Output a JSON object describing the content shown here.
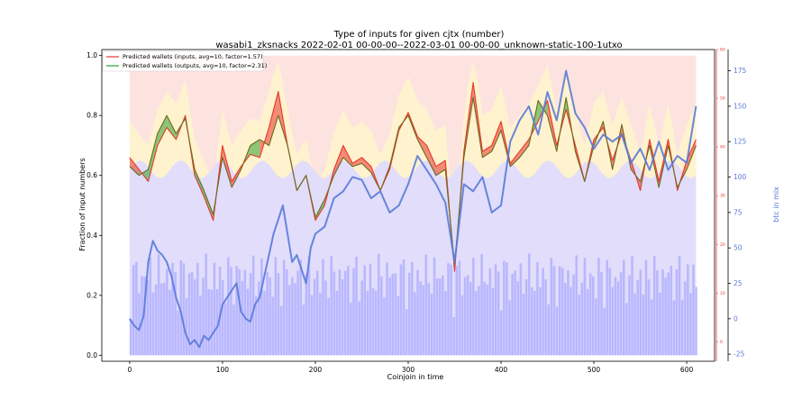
{
  "chart_data": {
    "type": "line",
    "title": "Type of inputs for given cjtx (number)",
    "subtitle": "wasabi1_zksnacks 2022-02-01 00-00-00--2022-03-01 00-00-00_unknown-static-100-1utxo",
    "xlabel": "Coinjoin in time",
    "ylabel": "Fraction of input numbers",
    "y2label": "btc in mix",
    "xlim": [
      -30,
      630
    ],
    "ylim": [
      -0.02,
      1.02
    ],
    "y2lim": [
      -30,
      190
    ],
    "y3lim": [
      -4,
      60
    ],
    "xticks": [
      0,
      100,
      200,
      300,
      400,
      500,
      600
    ],
    "yticks": [
      0.0,
      0.2,
      0.4,
      0.6,
      0.8,
      1.0
    ],
    "y2ticks": [
      -25,
      0,
      25,
      50,
      75,
      100,
      125,
      150,
      175
    ],
    "y3ticks": [
      0,
      10,
      20,
      30,
      40,
      50,
      60
    ],
    "legend_position": "top-left",
    "colors": {
      "inputs": "#e8372a",
      "outputs": "#2ca02c",
      "btc": "#5a7ad8",
      "band_bottom": "#dcdcff",
      "band_mid": "#fff3cc",
      "band_top": "#fbd9d6",
      "right_axis2": "#e53935"
    },
    "series": [
      {
        "name": "Predicted wallets (inputs, avg=10, factor=1.57)",
        "axis": "left",
        "x": [
          0,
          10,
          20,
          30,
          40,
          50,
          60,
          70,
          80,
          90,
          100,
          110,
          120,
          130,
          140,
          150,
          160,
          170,
          180,
          190,
          200,
          210,
          220,
          230,
          240,
          250,
          260,
          270,
          280,
          290,
          300,
          310,
          320,
          330,
          340,
          350,
          360,
          370,
          380,
          390,
          400,
          410,
          420,
          430,
          440,
          450,
          460,
          470,
          480,
          490,
          500,
          510,
          520,
          530,
          540,
          550,
          560,
          570,
          580,
          590,
          600,
          610
        ],
        "values": [
          0.66,
          0.62,
          0.58,
          0.7,
          0.76,
          0.72,
          0.8,
          0.6,
          0.53,
          0.45,
          0.7,
          0.58,
          0.63,
          0.67,
          0.66,
          0.76,
          0.88,
          0.7,
          0.55,
          0.6,
          0.45,
          0.5,
          0.62,
          0.7,
          0.64,
          0.66,
          0.63,
          0.55,
          0.62,
          0.75,
          0.81,
          0.73,
          0.7,
          0.63,
          0.65,
          0.28,
          0.68,
          0.91,
          0.68,
          0.7,
          0.78,
          0.64,
          0.68,
          0.72,
          0.78,
          0.85,
          0.7,
          0.82,
          0.7,
          0.58,
          0.72,
          0.76,
          0.65,
          0.74,
          0.65,
          0.55,
          0.72,
          0.58,
          0.72,
          0.55,
          0.65,
          0.72
        ]
      },
      {
        "name": "Predicted wallets (outputs, avg=10, factor=2.31)",
        "axis": "left",
        "x": [
          0,
          10,
          20,
          30,
          40,
          50,
          60,
          70,
          80,
          90,
          100,
          110,
          120,
          130,
          140,
          150,
          160,
          170,
          180,
          190,
          200,
          210,
          220,
          230,
          240,
          250,
          260,
          270,
          280,
          290,
          300,
          310,
          320,
          330,
          340,
          350,
          360,
          370,
          380,
          390,
          400,
          410,
          420,
          430,
          440,
          450,
          460,
          470,
          480,
          490,
          500,
          510,
          520,
          530,
          540,
          550,
          560,
          570,
          580,
          590,
          600,
          610
        ],
        "values": [
          0.63,
          0.6,
          0.62,
          0.74,
          0.8,
          0.74,
          0.79,
          0.62,
          0.55,
          0.47,
          0.66,
          0.56,
          0.62,
          0.7,
          0.72,
          0.7,
          0.8,
          0.7,
          0.55,
          0.6,
          0.46,
          0.52,
          0.6,
          0.66,
          0.63,
          0.64,
          0.61,
          0.55,
          0.63,
          0.76,
          0.8,
          0.72,
          0.66,
          0.6,
          0.62,
          0.3,
          0.66,
          0.86,
          0.66,
          0.68,
          0.75,
          0.63,
          0.66,
          0.7,
          0.85,
          0.8,
          0.68,
          0.86,
          0.68,
          0.58,
          0.7,
          0.78,
          0.62,
          0.77,
          0.62,
          0.58,
          0.7,
          0.56,
          0.7,
          0.56,
          0.62,
          0.7
        ]
      },
      {
        "name": "btc in mix",
        "axis": "right",
        "x": [
          0,
          5,
          10,
          15,
          20,
          25,
          30,
          35,
          40,
          45,
          50,
          55,
          60,
          65,
          70,
          75,
          80,
          85,
          90,
          95,
          100,
          105,
          110,
          115,
          120,
          125,
          130,
          135,
          140,
          145,
          150,
          155,
          160,
          165,
          170,
          175,
          180,
          185,
          190,
          195,
          200,
          210,
          220,
          230,
          240,
          250,
          260,
          270,
          280,
          290,
          300,
          310,
          320,
          330,
          340,
          350,
          360,
          370,
          380,
          390,
          400,
          410,
          420,
          430,
          440,
          450,
          460,
          470,
          480,
          490,
          500,
          510,
          520,
          530,
          540,
          550,
          560,
          570,
          580,
          590,
          600,
          610
        ],
        "values": [
          0,
          -5,
          -8,
          2,
          40,
          55,
          48,
          45,
          40,
          30,
          15,
          5,
          -10,
          -18,
          -15,
          -20,
          -12,
          -15,
          -10,
          -5,
          10,
          15,
          20,
          25,
          5,
          0,
          -2,
          10,
          15,
          30,
          45,
          60,
          70,
          80,
          60,
          40,
          45,
          35,
          25,
          50,
          60,
          65,
          85,
          90,
          100,
          98,
          85,
          90,
          75,
          80,
          95,
          115,
          105,
          95,
          82,
          40,
          95,
          90,
          100,
          75,
          80,
          125,
          140,
          150,
          130,
          160,
          140,
          175,
          145,
          135,
          120,
          130,
          125,
          130,
          110,
          120,
          105,
          125,
          105,
          115,
          110,
          150
        ]
      }
    ]
  }
}
